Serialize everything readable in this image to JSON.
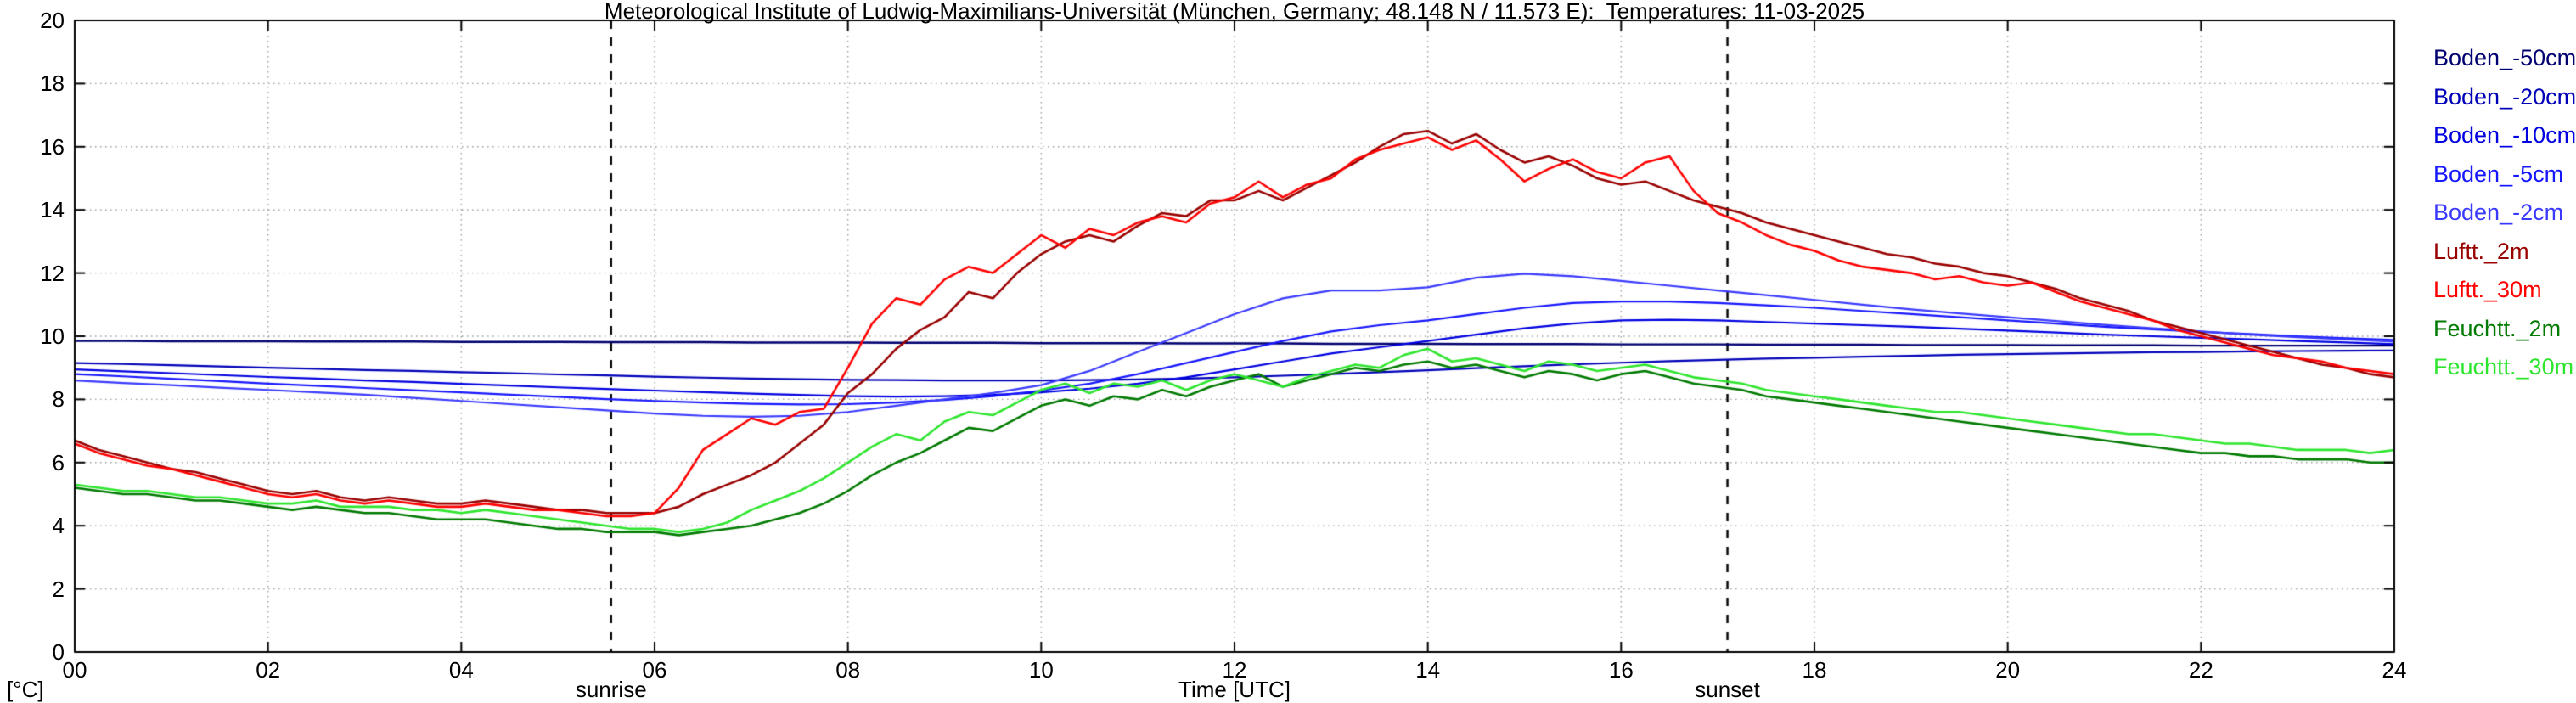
{
  "page": {
    "background": "#ffffff"
  },
  "chart_data": {
    "type": "line",
    "title": "Meteorological Institute of Ludwig-Maximilians-Universität (München, Germany; 48.148 N / 11.573 E):  Temperatures: 11-03-2025",
    "xlabel": "Time [UTC]",
    "ylabel": "[°C]",
    "xlim": [
      0,
      24
    ],
    "ylim": [
      0,
      20
    ],
    "grid": true,
    "legend_position": "right",
    "x_tick_values": [
      0,
      2,
      4,
      6,
      8,
      10,
      12,
      14,
      16,
      18,
      20,
      22,
      24
    ],
    "x_tick_labels": [
      "00",
      "02",
      "04",
      "06",
      "08",
      "10",
      "12",
      "14",
      "16",
      "18",
      "20",
      "22",
      "24"
    ],
    "y_tick_values": [
      0,
      2,
      4,
      6,
      8,
      10,
      12,
      14,
      16,
      18,
      20
    ],
    "y_tick_labels": [
      "0",
      "2",
      "4",
      "6",
      "8",
      "10",
      "12",
      "14",
      "16",
      "18",
      "20"
    ],
    "annotations": [
      {
        "label": "sunrise",
        "x": 5.55
      },
      {
        "label": "sunset",
        "x": 17.1
      }
    ],
    "series": [
      {
        "name": "Boden_-50cm",
        "color": "#000070",
        "width": 2.4,
        "x_start": 0,
        "x_step": 0.5,
        "values": [
          9.85,
          9.85,
          9.84,
          9.84,
          9.84,
          9.83,
          9.83,
          9.83,
          9.82,
          9.82,
          9.82,
          9.81,
          9.81,
          9.81,
          9.8,
          9.8,
          9.8,
          9.79,
          9.79,
          9.79,
          9.78,
          9.78,
          9.78,
          9.77,
          9.77,
          9.77,
          9.76,
          9.76,
          9.76,
          9.75,
          9.75,
          9.75,
          9.74,
          9.74,
          9.74,
          9.73,
          9.73,
          9.73,
          9.72,
          9.72,
          9.72,
          9.71,
          9.71,
          9.71,
          9.7,
          9.7,
          9.7,
          9.7,
          9.7
        ]
      },
      {
        "name": "Boden_-20cm",
        "color": "#0000b8",
        "width": 2.2,
        "x_start": 0,
        "x_step": 0.5,
        "values": [
          9.15,
          9.12,
          9.08,
          9.04,
          9.0,
          8.97,
          8.93,
          8.9,
          8.86,
          8.83,
          8.79,
          8.76,
          8.72,
          8.69,
          8.66,
          8.64,
          8.62,
          8.61,
          8.6,
          8.6,
          8.6,
          8.61,
          8.63,
          8.66,
          8.7,
          8.75,
          8.8,
          8.86,
          8.92,
          8.99,
          9.05,
          9.11,
          9.16,
          9.21,
          9.25,
          9.29,
          9.32,
          9.35,
          9.38,
          9.41,
          9.43,
          9.45,
          9.47,
          9.49,
          9.5,
          9.52,
          9.53,
          9.54,
          9.55
        ]
      },
      {
        "name": "Boden_-10cm",
        "color": "#0000e0",
        "width": 2.2,
        "x_start": 0,
        "x_step": 0.5,
        "values": [
          8.95,
          8.89,
          8.83,
          8.77,
          8.71,
          8.66,
          8.6,
          8.55,
          8.49,
          8.44,
          8.38,
          8.33,
          8.28,
          8.23,
          8.18,
          8.14,
          8.1,
          8.09,
          8.1,
          8.14,
          8.22,
          8.34,
          8.5,
          8.7,
          8.95,
          9.2,
          9.45,
          9.65,
          9.85,
          10.05,
          10.25,
          10.4,
          10.5,
          10.52,
          10.5,
          10.45,
          10.4,
          10.35,
          10.3,
          10.24,
          10.18,
          10.12,
          10.05,
          10.0,
          9.95,
          9.9,
          9.85,
          9.8,
          9.75
        ]
      },
      {
        "name": "Boden_-5cm",
        "color": "#1616ff",
        "width": 2.2,
        "x_start": 0,
        "x_step": 0.5,
        "values": [
          8.8,
          8.73,
          8.65,
          8.58,
          8.5,
          8.43,
          8.36,
          8.29,
          8.22,
          8.15,
          8.08,
          8.01,
          7.95,
          7.9,
          7.86,
          7.84,
          7.85,
          7.9,
          7.98,
          8.1,
          8.28,
          8.5,
          8.8,
          9.15,
          9.5,
          9.85,
          10.15,
          10.35,
          10.5,
          10.7,
          10.9,
          11.05,
          11.1,
          11.1,
          11.05,
          10.98,
          10.9,
          10.8,
          10.7,
          10.6,
          10.5,
          10.4,
          10.3,
          10.22,
          10.14,
          10.07,
          10.0,
          9.94,
          9.88
        ]
      },
      {
        "name": "Boden_-2cm",
        "color": "#3a3aff",
        "width": 2.2,
        "x_start": 0,
        "x_step": 0.5,
        "values": [
          8.6,
          8.52,
          8.45,
          8.37,
          8.3,
          8.22,
          8.15,
          8.05,
          7.95,
          7.85,
          7.75,
          7.65,
          7.55,
          7.48,
          7.45,
          7.48,
          7.6,
          7.8,
          8.0,
          8.2,
          8.45,
          8.9,
          9.5,
          10.1,
          10.7,
          11.2,
          11.45,
          11.45,
          11.55,
          11.85,
          11.98,
          11.9,
          11.75,
          11.6,
          11.45,
          11.3,
          11.15,
          11.0,
          10.85,
          10.72,
          10.6,
          10.48,
          10.36,
          10.25,
          10.15,
          10.05,
          9.97,
          9.9,
          9.83
        ]
      },
      {
        "name": "Luftt._2m",
        "color": "#990000",
        "width": 2.6,
        "x_start": 0,
        "x_step": 0.25,
        "values": [
          6.7,
          6.4,
          6.2,
          6.0,
          5.8,
          5.7,
          5.5,
          5.3,
          5.1,
          5.0,
          5.1,
          4.9,
          4.8,
          4.9,
          4.8,
          4.7,
          4.7,
          4.8,
          4.7,
          4.6,
          4.5,
          4.5,
          4.4,
          4.4,
          4.4,
          4.6,
          5.0,
          5.3,
          5.6,
          6.0,
          6.6,
          7.2,
          8.2,
          8.8,
          9.6,
          10.2,
          10.6,
          11.4,
          11.2,
          12.0,
          12.6,
          13.0,
          13.2,
          13.0,
          13.5,
          13.9,
          13.8,
          14.3,
          14.3,
          14.6,
          14.3,
          14.7,
          15.1,
          15.5,
          16.0,
          16.4,
          16.5,
          16.1,
          16.4,
          15.9,
          15.5,
          15.7,
          15.4,
          15.0,
          14.8,
          14.9,
          14.6,
          14.3,
          14.1,
          13.9,
          13.6,
          13.4,
          13.2,
          13.0,
          12.8,
          12.6,
          12.5,
          12.3,
          12.2,
          12.0,
          11.9,
          11.7,
          11.5,
          11.2,
          11.0,
          10.8,
          10.5,
          10.3,
          10.1,
          9.9,
          9.7,
          9.5,
          9.3,
          9.1,
          9.0,
          8.8,
          8.7
        ]
      },
      {
        "name": "Luftt._30m",
        "color": "#ff0000",
        "width": 2.6,
        "x_start": 0,
        "x_step": 0.25,
        "values": [
          6.6,
          6.3,
          6.1,
          5.9,
          5.8,
          5.6,
          5.4,
          5.2,
          5.0,
          4.9,
          5.0,
          4.8,
          4.7,
          4.8,
          4.7,
          4.6,
          4.6,
          4.7,
          4.6,
          4.5,
          4.5,
          4.4,
          4.3,
          4.3,
          4.4,
          5.2,
          6.4,
          6.9,
          7.4,
          7.2,
          7.6,
          7.7,
          9.0,
          10.4,
          11.2,
          11.0,
          11.8,
          12.2,
          12.0,
          12.6,
          13.2,
          12.8,
          13.4,
          13.2,
          13.6,
          13.8,
          13.6,
          14.2,
          14.4,
          14.9,
          14.4,
          14.8,
          15.0,
          15.6,
          15.9,
          16.1,
          16.3,
          15.9,
          16.2,
          15.6,
          14.9,
          15.3,
          15.6,
          15.2,
          15.0,
          15.5,
          15.7,
          14.6,
          13.9,
          13.6,
          13.2,
          12.9,
          12.7,
          12.4,
          12.2,
          12.1,
          12.0,
          11.8,
          11.9,
          11.7,
          11.6,
          11.7,
          11.4,
          11.1,
          10.9,
          10.7,
          10.5,
          10.2,
          10.0,
          9.8,
          9.6,
          9.4,
          9.3,
          9.2,
          9.0,
          8.9,
          8.8
        ]
      },
      {
        "name": "Feuchtt._2m",
        "color": "#007a00",
        "width": 2.6,
        "x_start": 0,
        "x_step": 0.25,
        "values": [
          5.2,
          5.1,
          5.0,
          5.0,
          4.9,
          4.8,
          4.8,
          4.7,
          4.6,
          4.5,
          4.6,
          4.5,
          4.4,
          4.4,
          4.3,
          4.2,
          4.2,
          4.2,
          4.1,
          4.0,
          3.9,
          3.9,
          3.8,
          3.8,
          3.8,
          3.7,
          3.8,
          3.9,
          4.0,
          4.2,
          4.4,
          4.7,
          5.1,
          5.6,
          6.0,
          6.3,
          6.7,
          7.1,
          7.0,
          7.4,
          7.8,
          8.0,
          7.8,
          8.1,
          8.0,
          8.3,
          8.1,
          8.4,
          8.6,
          8.8,
          8.4,
          8.6,
          8.8,
          9.0,
          8.9,
          9.1,
          9.2,
          9.0,
          9.1,
          8.9,
          8.7,
          8.9,
          8.8,
          8.6,
          8.8,
          8.9,
          8.7,
          8.5,
          8.4,
          8.3,
          8.1,
          8.0,
          7.9,
          7.8,
          7.7,
          7.6,
          7.5,
          7.4,
          7.3,
          7.2,
          7.1,
          7.0,
          6.9,
          6.8,
          6.7,
          6.6,
          6.5,
          6.4,
          6.3,
          6.3,
          6.2,
          6.2,
          6.1,
          6.1,
          6.1,
          6.0,
          6.0
        ]
      },
      {
        "name": "Feuchtt._30m",
        "color": "#2ee52e",
        "width": 2.6,
        "x_start": 0,
        "x_step": 0.25,
        "values": [
          5.3,
          5.2,
          5.1,
          5.1,
          5.0,
          4.9,
          4.9,
          4.8,
          4.7,
          4.7,
          4.8,
          4.6,
          4.6,
          4.6,
          4.5,
          4.5,
          4.4,
          4.5,
          4.4,
          4.3,
          4.2,
          4.1,
          4.0,
          3.9,
          3.9,
          3.8,
          3.9,
          4.1,
          4.5,
          4.8,
          5.1,
          5.5,
          6.0,
          6.5,
          6.9,
          6.7,
          7.3,
          7.6,
          7.5,
          7.9,
          8.3,
          8.5,
          8.2,
          8.5,
          8.4,
          8.6,
          8.3,
          8.6,
          8.8,
          8.6,
          8.4,
          8.7,
          8.9,
          9.1,
          9.0,
          9.4,
          9.6,
          9.2,
          9.3,
          9.1,
          8.9,
          9.2,
          9.1,
          8.9,
          9.0,
          9.1,
          8.9,
          8.7,
          8.6,
          8.5,
          8.3,
          8.2,
          8.1,
          8.0,
          7.9,
          7.8,
          7.7,
          7.6,
          7.6,
          7.5,
          7.4,
          7.3,
          7.2,
          7.1,
          7.0,
          6.9,
          6.9,
          6.8,
          6.7,
          6.6,
          6.6,
          6.5,
          6.4,
          6.4,
          6.4,
          6.3,
          6.4
        ]
      }
    ]
  }
}
